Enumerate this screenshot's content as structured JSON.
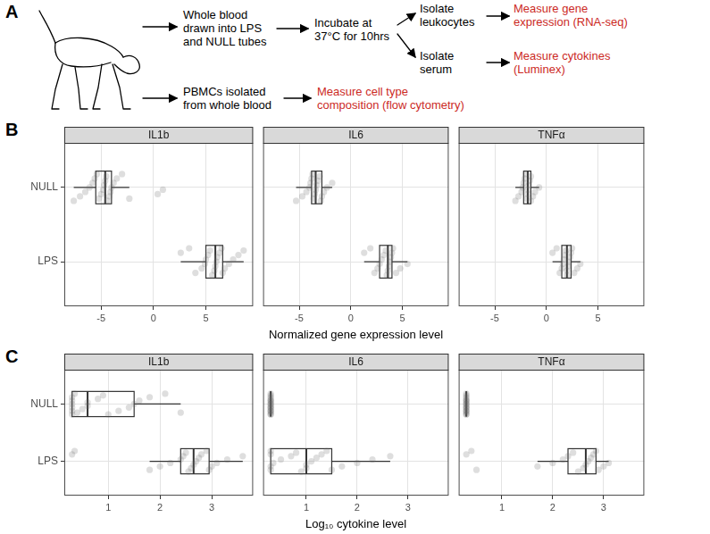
{
  "panel_labels": [
    "A",
    "B",
    "C"
  ],
  "diagram": {
    "nodes": [
      {
        "lines": [
          "Whole blood",
          "drawn into LPS",
          "and NULL tubes"
        ],
        "color": "#000000"
      },
      {
        "lines": [
          "Incubate at",
          "37°C for 10hrs"
        ],
        "color": "#000000"
      },
      {
        "lines": [
          "Isolate",
          "leukocytes"
        ],
        "color": "#000000"
      },
      {
        "lines": [
          "Isolate",
          "serum"
        ],
        "color": "#000000"
      },
      {
        "lines": [
          "Measure gene",
          "expression (RNA-seq)"
        ],
        "color": "#cc2a1f"
      },
      {
        "lines": [
          "Measure cytokines",
          "(Luminex)"
        ],
        "color": "#cc2a1f"
      },
      {
        "lines": [
          "PBMCs isolated",
          "from whole blood"
        ],
        "color": "#000000"
      },
      {
        "lines": [
          "Measure cell type",
          "composition (flow cytometry)"
        ],
        "color": "#cc2a1f"
      }
    ]
  },
  "chart_data": [
    {
      "type": "boxplot",
      "title": "IL1b",
      "categories": [
        "NULL",
        "LPS"
      ],
      "values": [
        [
          -7.6,
          -7.0,
          -6.5,
          -6.1,
          -5.8,
          -5.6,
          -5.4,
          -5.2,
          -5.0,
          -4.8,
          -4.7,
          -4.6,
          -4.5,
          -4.4,
          -4.2,
          -4.1,
          -4.0,
          -3.8,
          -3.5,
          -3.0,
          -2.3,
          0.4,
          0.9
        ],
        [
          2.6,
          3.4,
          4.0,
          4.6,
          4.9,
          5.0,
          5.2,
          5.4,
          5.6,
          5.8,
          5.9,
          6.0,
          6.1,
          6.3,
          6.5,
          6.6,
          6.8,
          7.2,
          7.6,
          8.1,
          8.6
        ]
      ],
      "boxes": [
        {
          "low": -7.6,
          "q1": -5.5,
          "median": -4.6,
          "q3": -4.0,
          "high": -2.3
        },
        {
          "low": 2.6,
          "q1": 5.0,
          "median": 5.9,
          "q3": 6.6,
          "high": 8.6
        }
      ],
      "xlim": [
        -8.5,
        9.5
      ],
      "xticks": [
        -5,
        0,
        5
      ],
      "grid": true,
      "tick_labels": true
    },
    {
      "type": "boxplot",
      "title": "IL6",
      "categories": [
        "NULL",
        "LPS"
      ],
      "values": [
        [
          -5.3,
          -4.7,
          -4.3,
          -4.0,
          -3.9,
          -3.8,
          -3.7,
          -3.6,
          -3.5,
          -3.4,
          -3.3,
          -3.2,
          -3.0,
          -2.9,
          -2.8,
          -2.6,
          -2.3,
          -1.8
        ],
        [
          1.3,
          1.9,
          2.3,
          2.6,
          2.8,
          3.0,
          3.2,
          3.4,
          3.5,
          3.6,
          3.7,
          3.8,
          3.9,
          4.0,
          4.1,
          4.4,
          4.8,
          5.5
        ]
      ],
      "boxes": [
        {
          "low": -5.3,
          "q1": -3.8,
          "median": -3.4,
          "q3": -2.8,
          "high": -1.8
        },
        {
          "low": 1.3,
          "q1": 2.8,
          "median": 3.6,
          "q3": 4.0,
          "high": 5.5
        }
      ],
      "xlim": [
        -8.5,
        9.5
      ],
      "xticks": [
        -5,
        0,
        5
      ],
      "grid": true,
      "tick_labels": "x",
      "xlabel": "Normalized gene expression level"
    },
    {
      "type": "boxplot",
      "title": "TNFα",
      "categories": [
        "NULL",
        "LPS"
      ],
      "values": [
        [
          -3.0,
          -2.7,
          -2.4,
          -2.3,
          -2.2,
          -2.1,
          -2.0,
          -1.9,
          -1.8,
          -1.8,
          -1.7,
          -1.6,
          -1.5,
          -1.5,
          -1.3,
          -1.1,
          -0.7
        ],
        [
          0.6,
          1.0,
          1.3,
          1.5,
          1.6,
          1.7,
          1.8,
          1.9,
          2.0,
          2.0,
          2.1,
          2.2,
          2.3,
          2.4,
          2.5,
          2.7,
          3.0,
          3.3
        ]
      ],
      "boxes": [
        {
          "low": -3.0,
          "q1": -2.2,
          "median": -1.8,
          "q3": -1.5,
          "high": -0.7
        },
        {
          "low": 0.6,
          "q1": 1.5,
          "median": 2.0,
          "q3": 2.4,
          "high": 3.3
        }
      ],
      "xlim": [
        -8.5,
        9.5
      ],
      "xticks": [
        -5,
        0,
        5
      ],
      "grid": true,
      "tick_labels": "x"
    },
    {
      "type": "boxplot",
      "title": "IL1b",
      "categories": [
        "NULL",
        "LPS"
      ],
      "values": [
        [
          0.3,
          0.3,
          0.3,
          0.3,
          0.3,
          0.3,
          0.35,
          0.4,
          0.5,
          0.6,
          0.6,
          0.8,
          0.9,
          1.0,
          1.2,
          1.4,
          1.5,
          1.6,
          1.8,
          2.1,
          2.4
        ],
        [
          0.3,
          0.35,
          1.8,
          2.0,
          2.2,
          2.4,
          2.45,
          2.5,
          2.55,
          2.6,
          2.65,
          2.7,
          2.75,
          2.8,
          2.9,
          2.95,
          3.0,
          3.1,
          3.3,
          3.6
        ]
      ],
      "boxes": [
        {
          "low": 0.3,
          "q1": 0.3,
          "median": 0.6,
          "q3": 1.5,
          "high": 2.4
        },
        {
          "low": 1.8,
          "q1": 2.4,
          "median": 2.65,
          "q3": 2.95,
          "high": 3.6
        }
      ],
      "xlim": [
        0.15,
        3.8
      ],
      "xticks": [
        1,
        2,
        3
      ],
      "grid": true,
      "tick_labels": true
    },
    {
      "type": "boxplot",
      "title": "IL6",
      "categories": [
        "NULL",
        "LPS"
      ],
      "values": [
        [
          0.3,
          0.3,
          0.3,
          0.3,
          0.3,
          0.3,
          0.3,
          0.3,
          0.3,
          0.3,
          0.3,
          0.3,
          0.3,
          0.3,
          0.3,
          0.3,
          0.3,
          0.3
        ],
        [
          0.3,
          0.3,
          0.3,
          0.3,
          0.35,
          0.5,
          0.7,
          0.8,
          0.9,
          1.0,
          1.0,
          1.1,
          1.2,
          1.3,
          1.4,
          1.5,
          1.7,
          2.0,
          2.3,
          2.65
        ]
      ],
      "boxes": [
        {
          "low": 0.3,
          "q1": 0.3,
          "median": 0.3,
          "q3": 0.3,
          "high": 0.3
        },
        {
          "low": 0.3,
          "q1": 0.3,
          "median": 1.0,
          "q3": 1.5,
          "high": 2.65
        }
      ],
      "xlim": [
        0.15,
        3.8
      ],
      "xticks": [
        1,
        2,
        3
      ],
      "grid": true,
      "tick_labels": "x",
      "xlabel": "Log₁₀ cytokine level"
    },
    {
      "type": "boxplot",
      "title": "TNFα",
      "categories": [
        "NULL",
        "LPS"
      ],
      "values": [
        [
          0.3,
          0.3,
          0.3,
          0.3,
          0.3,
          0.3,
          0.3,
          0.3,
          0.3,
          0.3,
          0.3,
          0.3,
          0.3,
          0.3,
          0.3,
          0.3,
          0.3,
          0.3
        ],
        [
          0.3,
          0.4,
          0.5,
          1.7,
          2.0,
          2.2,
          2.3,
          2.4,
          2.5,
          2.6,
          2.65,
          2.7,
          2.75,
          2.8,
          2.85,
          2.9,
          3.0,
          3.1
        ]
      ],
      "boxes": [
        {
          "low": 0.3,
          "q1": 0.3,
          "median": 0.3,
          "q3": 0.3,
          "high": 0.3
        },
        {
          "low": 1.7,
          "q1": 2.3,
          "median": 2.65,
          "q3": 2.85,
          "high": 3.1
        }
      ],
      "xlim": [
        0.15,
        3.8
      ],
      "xticks": [
        1,
        2,
        3
      ],
      "grid": true,
      "tick_labels": "x"
    }
  ]
}
